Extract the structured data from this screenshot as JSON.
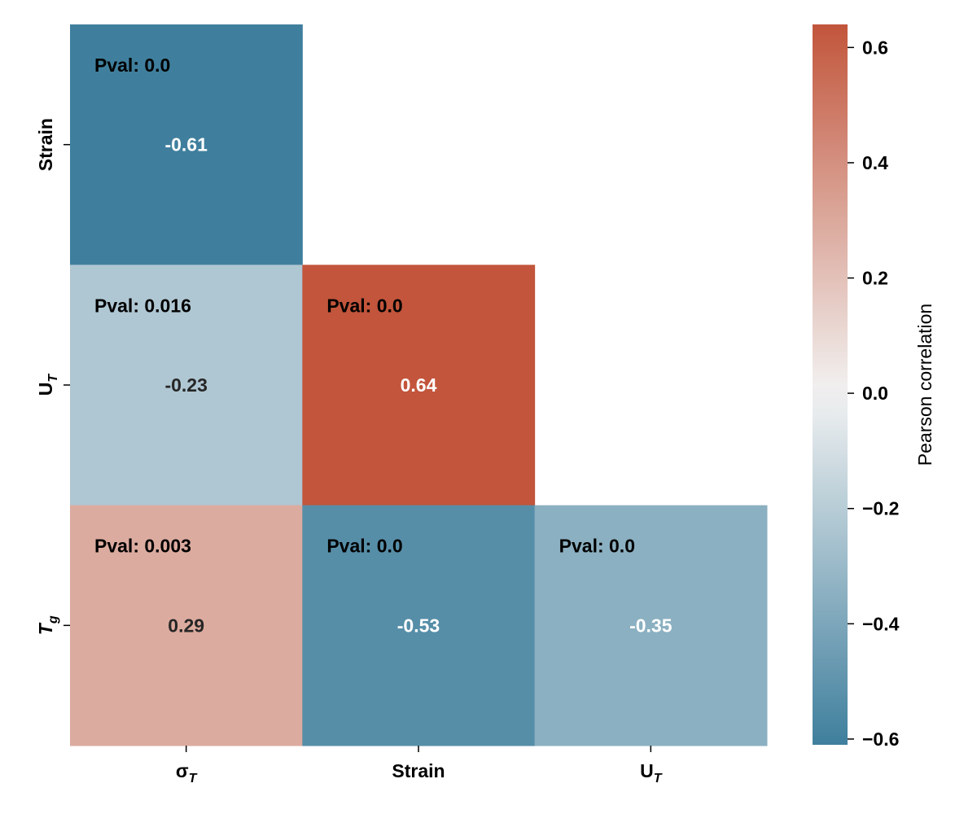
{
  "chart_data": {
    "type": "heatmap",
    "title": "",
    "x_categories": [
      {
        "base": "σ",
        "sub": "T",
        "italic_base": false
      },
      {
        "base": "Strain",
        "sub": "",
        "italic_base": false
      },
      {
        "base": "U",
        "sub": "T",
        "italic_base": false
      }
    ],
    "y_categories": [
      {
        "base": "Strain",
        "sub": "",
        "italic_base": false
      },
      {
        "base": "U",
        "sub": "T",
        "italic_base": false
      },
      {
        "base": "T",
        "sub": "g",
        "italic_base": true
      }
    ],
    "cells": [
      {
        "row": 0,
        "col": 0,
        "value": -0.61,
        "label": "-0.61",
        "pval": "Pval: 0.0"
      },
      {
        "row": 1,
        "col": 0,
        "value": -0.23,
        "label": "-0.23",
        "pval": "Pval: 0.016"
      },
      {
        "row": 1,
        "col": 1,
        "value": 0.64,
        "label": "0.64",
        "pval": "Pval: 0.0"
      },
      {
        "row": 2,
        "col": 0,
        "value": 0.29,
        "label": "0.29",
        "pval": "Pval: 0.003"
      },
      {
        "row": 2,
        "col": 1,
        "value": -0.53,
        "label": "-0.53",
        "pval": "Pval: 0.0"
      },
      {
        "row": 2,
        "col": 2,
        "value": -0.35,
        "label": "-0.35",
        "pval": "Pval: 0.0"
      }
    ],
    "colorbar": {
      "label": "Pearson correlation",
      "range": [
        -0.61,
        0.64
      ],
      "ticks": [
        -0.6,
        -0.4,
        -0.2,
        0.0,
        0.2,
        0.4,
        0.6
      ],
      "tick_labels": [
        "−0.6",
        "−0.4",
        "−0.2",
        "0.0",
        "0.2",
        "0.4",
        "0.6"
      ]
    },
    "colors": {
      "negative": "#3f7f9d",
      "center": "#f2f2f2",
      "positive": "#c2553b",
      "text_dark": "#262626",
      "text_light": "#ffffff"
    }
  }
}
